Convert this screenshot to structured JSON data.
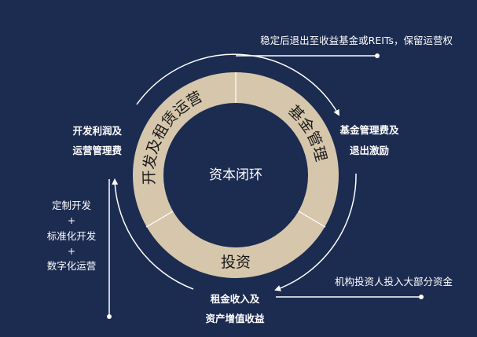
{
  "colors": {
    "background": "#1c2b50",
    "ring": "#d6c6ac",
    "ring_text": "#1a1a1a",
    "line": "#ffffff"
  },
  "center_label": "资本闭环",
  "segments": [
    {
      "label": "开发及租赁运营"
    },
    {
      "label": "基金管理"
    },
    {
      "label": "投资"
    }
  ],
  "annotations": {
    "top": "稳定后退出至收益基金或REITs，保留运营权",
    "right_lines": [
      "基金管理费及",
      "退出激励"
    ],
    "bottom_right": "机构投资人投入大部分资金",
    "bottom_lines": [
      "租金收入及",
      "资产增值收益"
    ],
    "left_top_lines": [
      "开发利润及",
      "运营管理费"
    ],
    "left_list": [
      "定制开发",
      "+",
      "标准化开发",
      "+",
      "数字化运营"
    ]
  }
}
